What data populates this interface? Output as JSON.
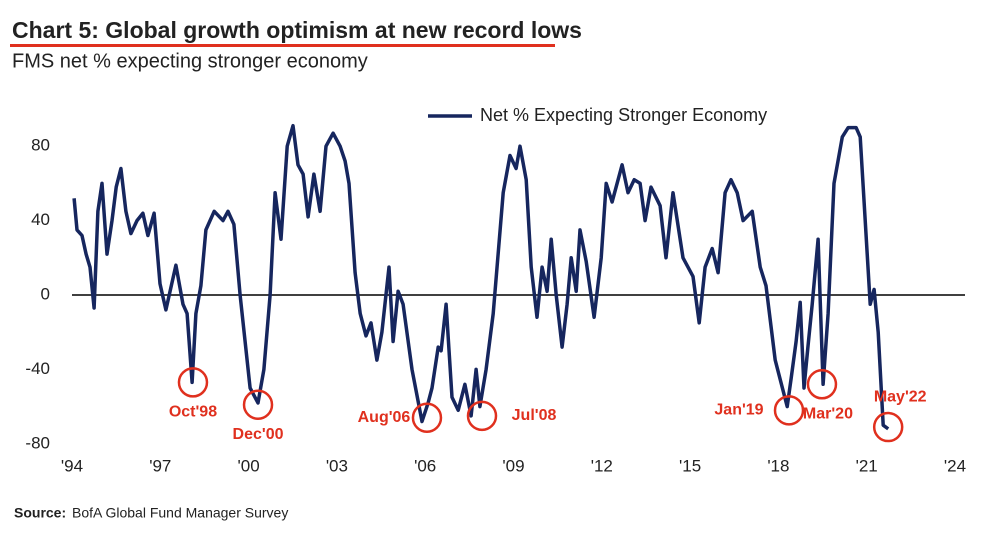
{
  "chart_data": {
    "type": "line",
    "title": "Chart 5: Global growth optimism at new record lows",
    "subtitle": "FMS net % expecting stronger economy",
    "source": {
      "label": "Source:",
      "text": "BofA Global Fund Manager Survey"
    },
    "x": [
      1994.07,
      1994.17,
      1994.34,
      1994.48,
      1994.61,
      1994.75,
      1994.88,
      1995.02,
      1995.19,
      1995.36,
      1995.5,
      1995.66,
      1995.83,
      1996.0,
      1996.21,
      1996.41,
      1996.58,
      1996.79,
      1996.99,
      1997.19,
      1997.53,
      1997.77,
      1997.91,
      1998.08,
      1998.21,
      1998.38,
      1998.55,
      1998.83,
      1999.13,
      1999.3,
      1999.5,
      1999.71,
      2000.05,
      2000.32,
      2000.52,
      2000.73,
      2000.9,
      2001.1,
      2001.31,
      2001.51,
      2001.68,
      2001.85,
      2002.02,
      2002.22,
      2002.43,
      2002.63,
      2002.87,
      2003.11,
      2003.28,
      2003.41,
      2003.62,
      2003.79,
      2003.99,
      2004.16,
      2004.36,
      2004.53,
      2004.77,
      2004.91,
      2005.08,
      2005.25,
      2005.55,
      2005.89,
      2006.1,
      2006.23,
      2006.44,
      2006.54,
      2006.71,
      2006.91,
      2007.12,
      2007.35,
      2007.56,
      2007.73,
      2007.86,
      2008.07,
      2008.31,
      2008.65,
      2008.88,
      2009.09,
      2009.22,
      2009.43,
      2009.6,
      2009.8,
      2009.97,
      2010.14,
      2010.28,
      2010.45,
      2010.65,
      2010.82,
      2010.96,
      2011.13,
      2011.26,
      2011.47,
      2011.74,
      2011.98,
      2012.15,
      2012.35,
      2012.69,
      2012.89,
      2013.1,
      2013.3,
      2013.47,
      2013.67,
      2013.98,
      2014.18,
      2014.42,
      2014.76,
      2015.1,
      2015.31,
      2015.51,
      2015.75,
      2015.95,
      2016.19,
      2016.39,
      2016.6,
      2016.8,
      2017.11,
      2017.38,
      2017.58,
      2017.89,
      2018.3,
      2018.43,
      2018.6,
      2018.74,
      2018.87,
      2019.01,
      2019.15,
      2019.35,
      2019.52,
      2019.69,
      2019.89,
      2020.17,
      2020.37,
      2020.64,
      2020.78,
      2020.91,
      2021.12,
      2021.25,
      2021.39,
      2021.56,
      2021.73
    ],
    "series": [
      {
        "name": "Net % Expecting Stronger Economy",
        "color": "#16265e",
        "values": [
          52,
          35,
          32,
          22,
          15,
          -7,
          45,
          60,
          22,
          40,
          58,
          68,
          45,
          33,
          40,
          44,
          32,
          44,
          6,
          -8,
          16,
          -5,
          -10,
          -47,
          -10,
          5,
          35,
          45,
          40,
          45,
          38,
          0,
          -50,
          -58,
          -40,
          0,
          55,
          30,
          80,
          91,
          70,
          65,
          42,
          65,
          45,
          80,
          87,
          80,
          72,
          60,
          12,
          -10,
          -22,
          -15,
          -35,
          -20,
          15,
          -25,
          2,
          -5,
          -40,
          -68,
          -58,
          -50,
          -28,
          -30,
          -5,
          -55,
          -62,
          -48,
          -65,
          -40,
          -60,
          -40,
          -10,
          55,
          75,
          68,
          80,
          62,
          15,
          -12,
          15,
          2,
          30,
          0,
          -28,
          -5,
          20,
          2,
          35,
          18,
          -12,
          20,
          60,
          50,
          70,
          55,
          62,
          60,
          40,
          58,
          48,
          20,
          55,
          20,
          10,
          -15,
          15,
          25,
          12,
          55,
          62,
          55,
          40,
          45,
          15,
          5,
          -35,
          -60,
          -45,
          -25,
          -4,
          -50,
          -27,
          -5,
          30,
          -48,
          -10,
          60,
          85,
          90,
          90,
          85,
          50,
          -5,
          3,
          -20,
          -70,
          -72
        ]
      }
    ],
    "annotations": [
      {
        "label": "Oct'98",
        "x": 1998.11,
        "y": -47
      },
      {
        "label": "Dec'00",
        "x": 2000.32,
        "y": -59
      },
      {
        "label": "Aug'06",
        "x": 2006.06,
        "y": -66
      },
      {
        "label": "Jul'08",
        "x": 2007.93,
        "y": -65
      },
      {
        "label": "Jan'19",
        "x": 2018.36,
        "y": -62
      },
      {
        "label": "Mar'20",
        "x": 2019.48,
        "y": -48
      },
      {
        "label": "May'22",
        "x": 2021.73,
        "y": -71
      }
    ],
    "annotation_color": "#e0301e",
    "xlim": [
      1994,
      2024
    ],
    "xticks": [
      {
        "value": 1994,
        "label": "'94"
      },
      {
        "value": 1997,
        "label": "'97"
      },
      {
        "value": 2000,
        "label": "'00"
      },
      {
        "value": 2003,
        "label": "'03"
      },
      {
        "value": 2006,
        "label": "'06"
      },
      {
        "value": 2009,
        "label": "'09"
      },
      {
        "value": 2012,
        "label": "'12"
      },
      {
        "value": 2015,
        "label": "'15"
      },
      {
        "value": 2018,
        "label": "'18"
      },
      {
        "value": 2021,
        "label": "'21"
      },
      {
        "value": 2024,
        "label": "'24"
      }
    ],
    "ylim": [
      -90,
      100
    ],
    "yticks": [
      -80,
      -40,
      0,
      40,
      80
    ],
    "zero_line": true,
    "grid": false,
    "legend": "top"
  }
}
